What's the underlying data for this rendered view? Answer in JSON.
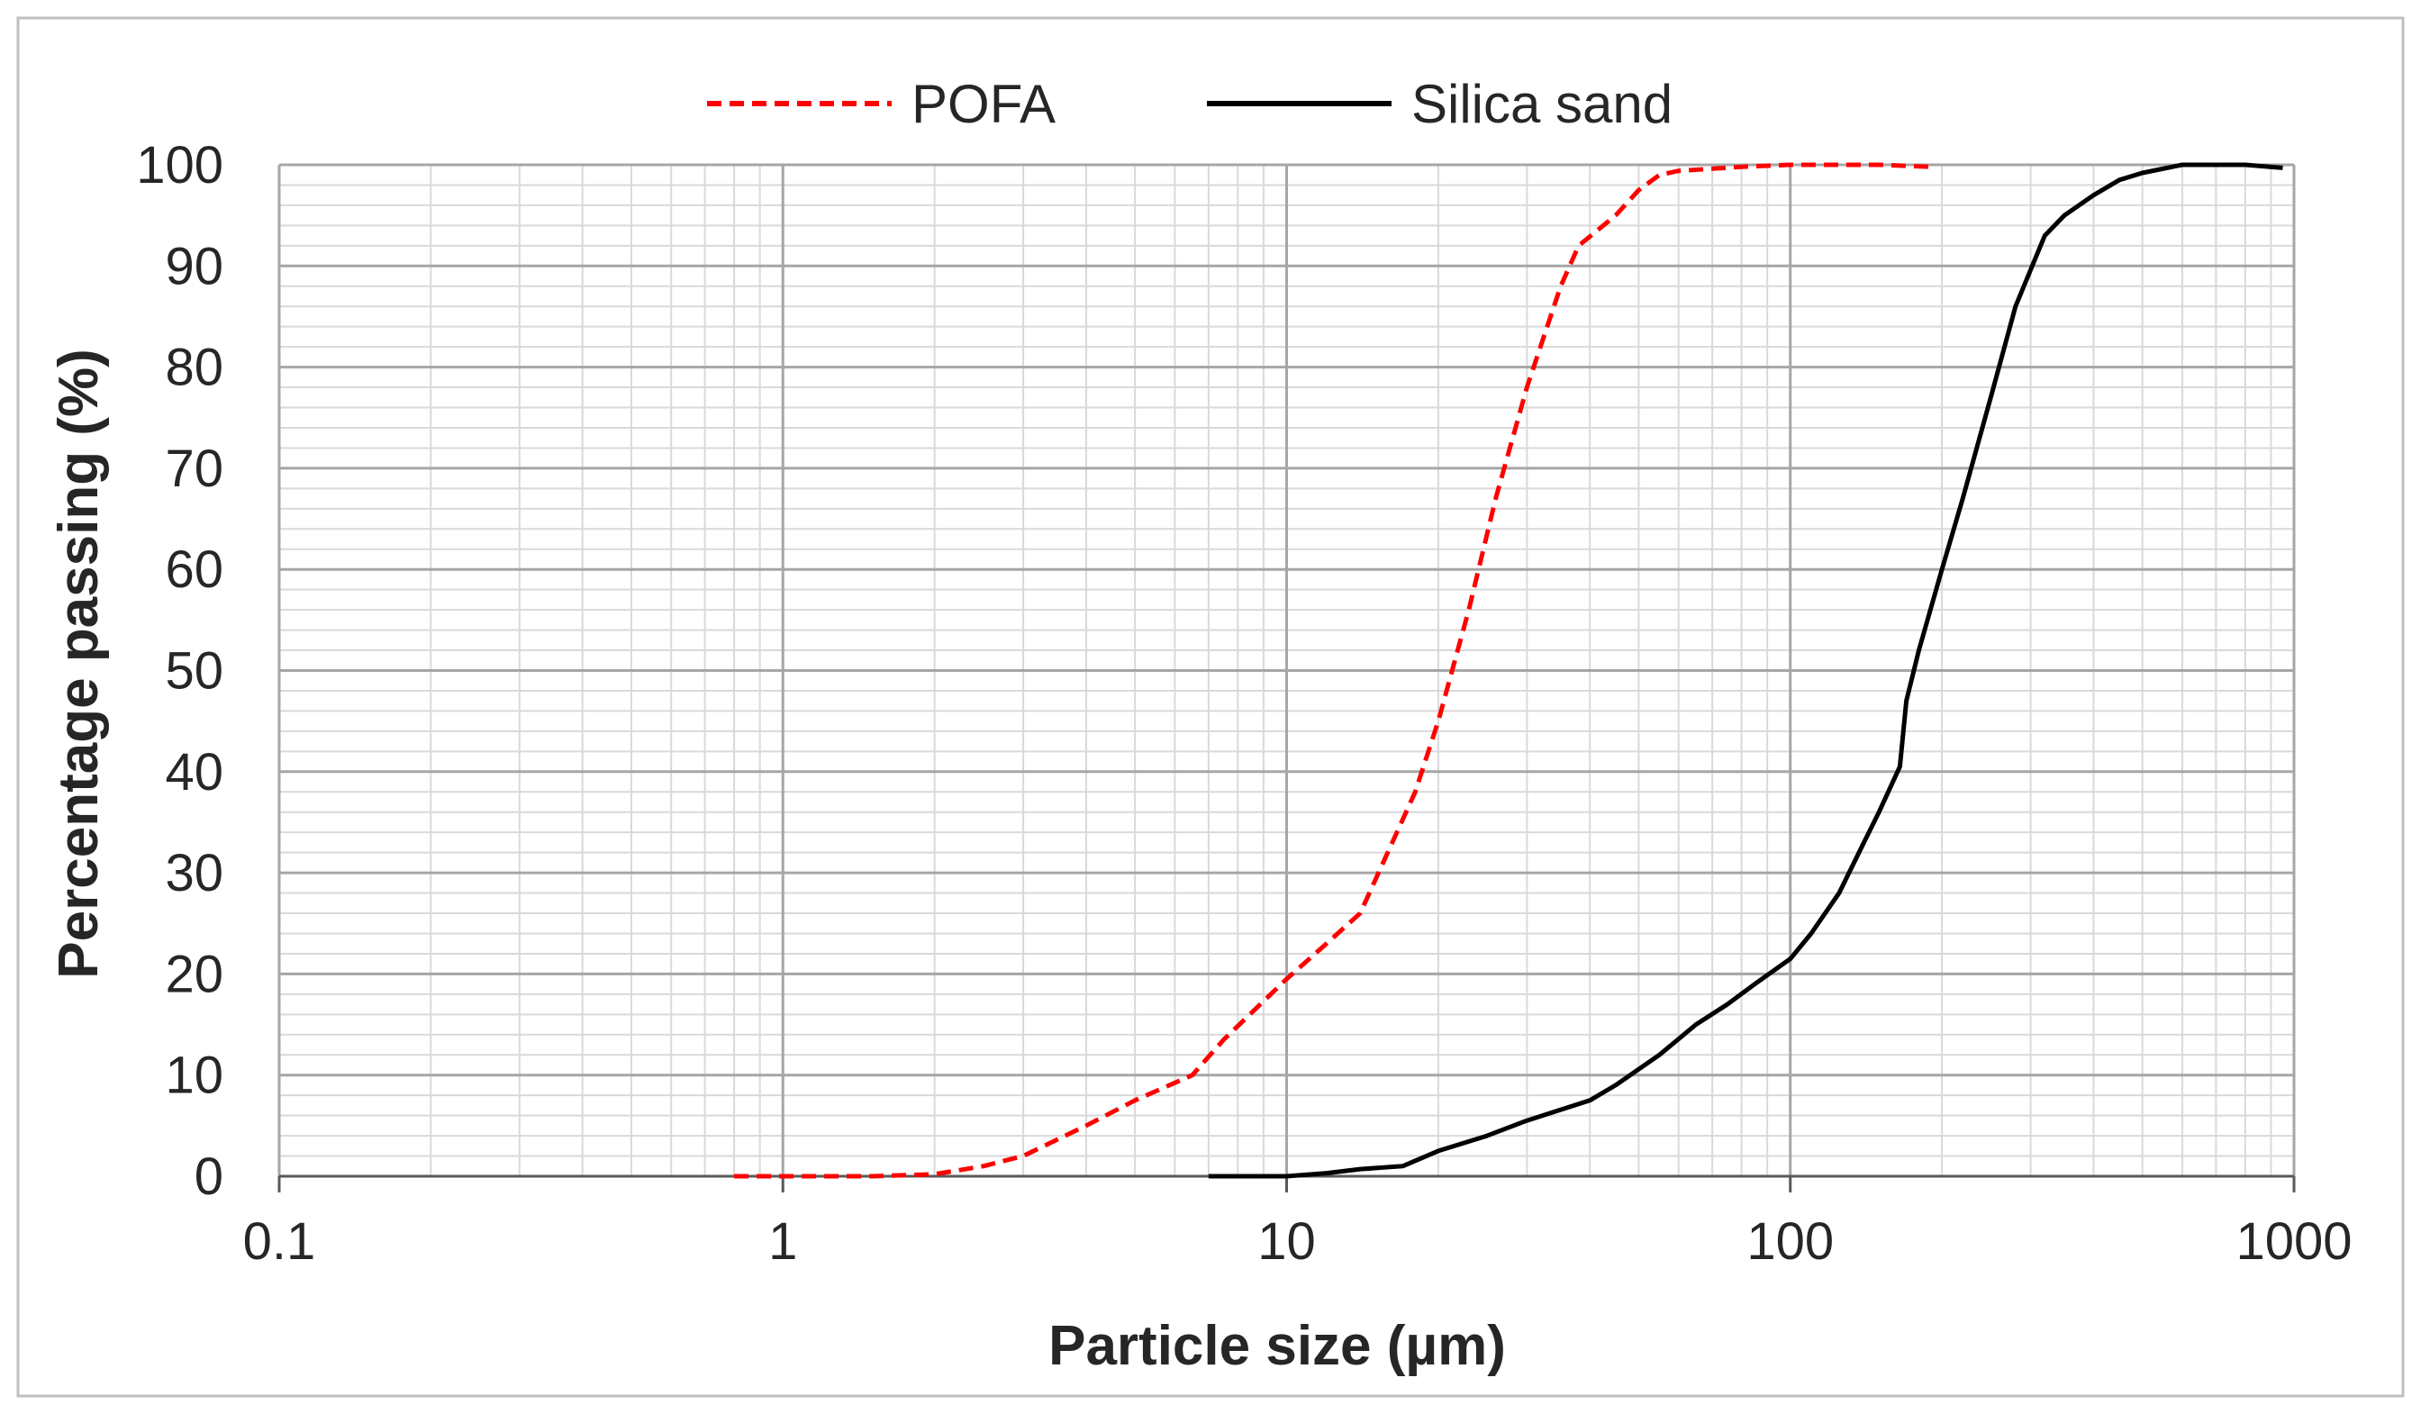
{
  "chart_data": {
    "type": "line",
    "title": "",
    "xlabel": "Particle size (µm)",
    "ylabel": "Percentage passing (%)",
    "x_scale": "log",
    "xlim": [
      0.1,
      1000
    ],
    "ylim": [
      0,
      100
    ],
    "x_ticks": [
      0.1,
      1,
      10,
      100,
      1000
    ],
    "x_tick_labels": [
      "0.1",
      "1",
      "10",
      "100",
      "1000"
    ],
    "y_ticks": [
      0,
      10,
      20,
      30,
      40,
      50,
      60,
      70,
      80,
      90,
      100
    ],
    "y_tick_labels": [
      "0",
      "10",
      "20",
      "30",
      "40",
      "50",
      "60",
      "70",
      "80",
      "90",
      "100"
    ],
    "grid": true,
    "legend_position": "top-center",
    "series": [
      {
        "name": "POFA",
        "color": "#ff0000",
        "line_style": "dashed",
        "x": [
          0.8,
          1,
          1.5,
          2,
          2.5,
          3,
          4,
          5,
          6.5,
          7.5,
          10,
          12,
          14,
          18,
          20,
          23,
          26,
          30,
          35,
          38,
          45,
          50,
          55,
          60,
          80,
          100,
          150,
          190
        ],
        "y": [
          0,
          0,
          0,
          0.2,
          1,
          2,
          5,
          7.5,
          10,
          13.5,
          19.5,
          23,
          26,
          38,
          45,
          56,
          67,
          78,
          88,
          92,
          95,
          97.5,
          99,
          99.4,
          99.8,
          100,
          100,
          99.8
        ]
      },
      {
        "name": "Silica sand",
        "color": "#000000",
        "line_style": "solid",
        "x": [
          7,
          8,
          10,
          12,
          14,
          17,
          20,
          25,
          30,
          40,
          45,
          55,
          65,
          75,
          85,
          100,
          110,
          125,
          140,
          150,
          165,
          170,
          180,
          200,
          220,
          250,
          280,
          320,
          350,
          400,
          450,
          500,
          600,
          700,
          800,
          950
        ],
        "y": [
          0,
          0,
          0,
          0.3,
          0.7,
          1,
          2.5,
          4,
          5.5,
          7.5,
          9,
          12,
          15,
          17,
          19,
          21.5,
          24,
          28,
          33,
          36,
          40.5,
          47,
          52,
          60,
          67,
          77,
          86,
          93,
          95,
          97,
          98.5,
          99.2,
          100,
          100,
          100,
          99.7
        ]
      }
    ]
  }
}
